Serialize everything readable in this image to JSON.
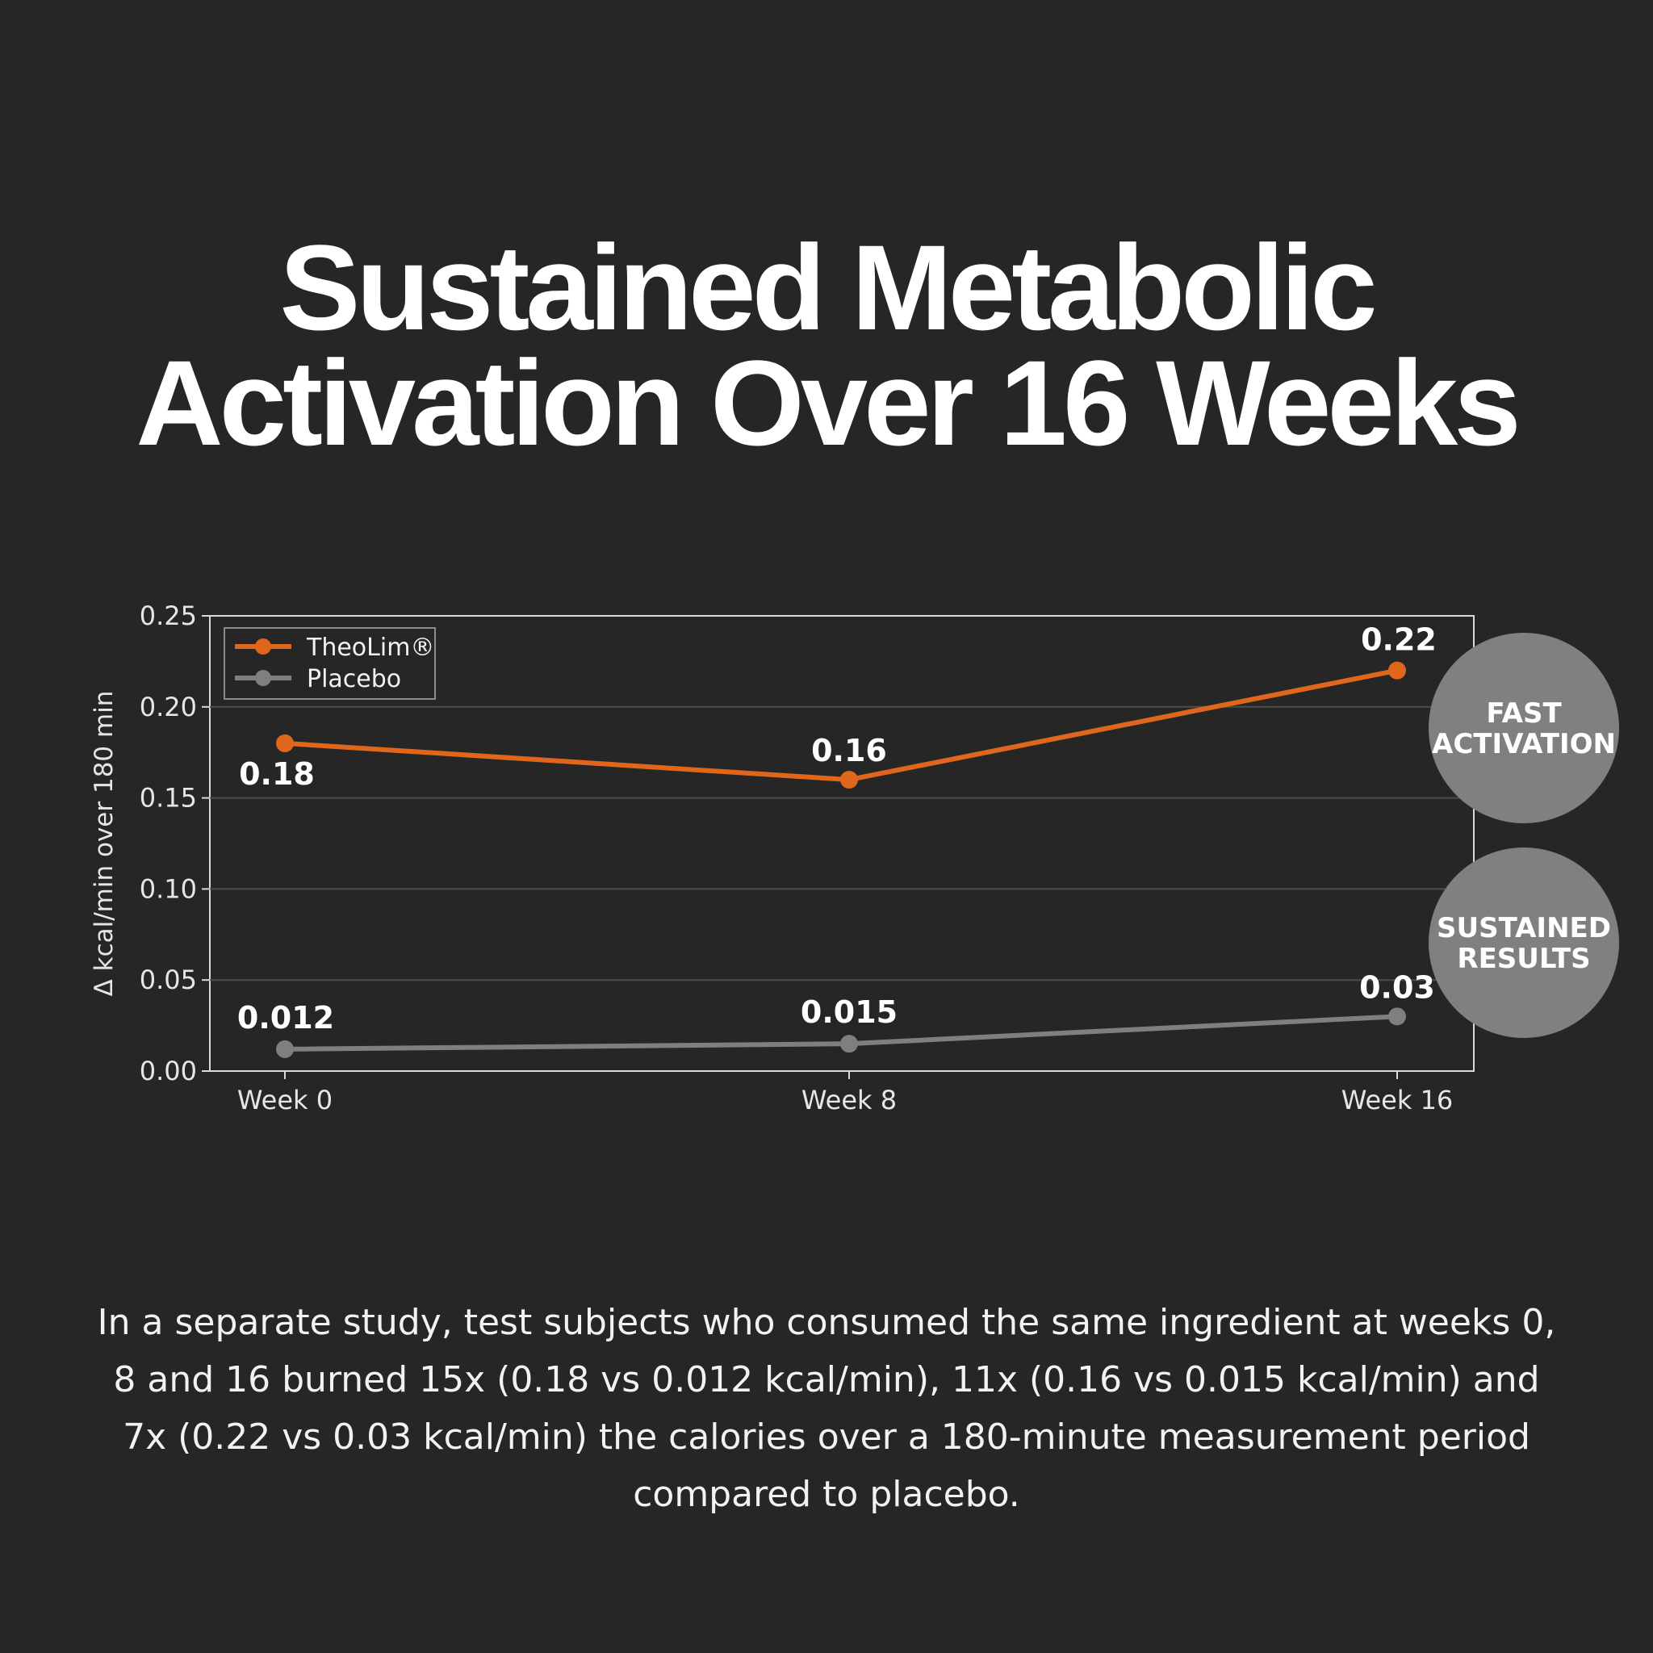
{
  "headline": {
    "line1": "Sustained Metabolic",
    "line2": "Activation Over 16 Weeks"
  },
  "chart_data": {
    "type": "line",
    "categories": [
      "Week 0",
      "Week 8",
      "Week 16"
    ],
    "series": [
      {
        "name": "TheoLim®",
        "values": [
          0.18,
          0.16,
          0.22
        ],
        "labels": [
          "0.18",
          "0.16",
          "0.22"
        ],
        "color": "#e0661c"
      },
      {
        "name": "Placebo",
        "values": [
          0.012,
          0.015,
          0.03
        ],
        "labels": [
          "0.012",
          "0.015",
          "0.03"
        ],
        "color": "#7f7f7f"
      }
    ],
    "ylabel": "Δ kcal/min over 180 min",
    "ylim": [
      0,
      0.25
    ],
    "yticks": [
      "0.00",
      "0.05",
      "0.10",
      "0.15",
      "0.20",
      "0.25"
    ],
    "grid": true,
    "legend_position": "top-left",
    "badges": [
      "FAST ACTIVATION",
      "SUSTAINED RESULTS"
    ]
  },
  "caption": "In a separate study, test subjects who consumed the same ingredient at weeks 0, 8 and 16 burned 15x (0.18 vs 0.012 kcal/min), 11x (0.16 vs 0.015 kcal/min) and 7x (0.22 vs 0.03 kcal/min) the calories over a 180-minute measurement period compared to placebo."
}
